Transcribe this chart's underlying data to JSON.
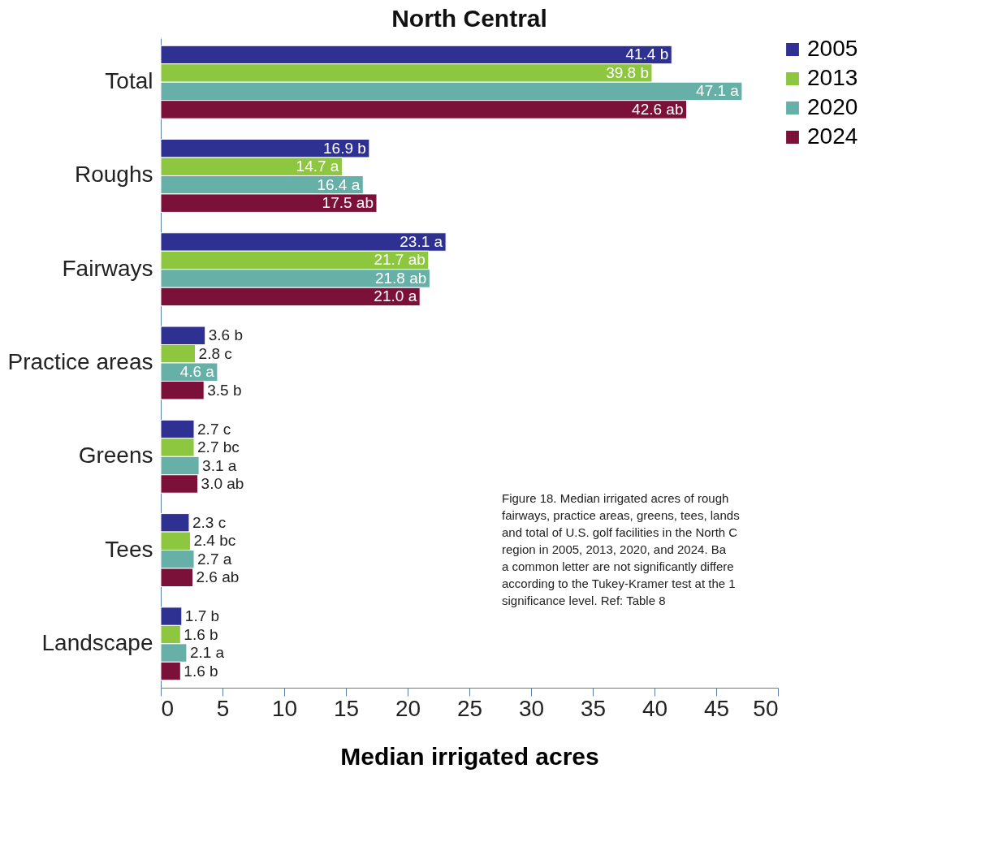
{
  "chart_data": {
    "type": "bar",
    "orientation": "horizontal",
    "title": "North Central",
    "xlabel": "Median irrigated acres",
    "categories": [
      "Total",
      "Roughs",
      "Fairways",
      "Practice areas",
      "Greens",
      "Tees",
      "Landscape"
    ],
    "series": [
      {
        "name": "2005",
        "color": "#2e3192",
        "values": [
          41.4,
          16.9,
          23.1,
          3.6,
          2.7,
          2.3,
          1.7
        ],
        "value_labels": [
          "41.4 b",
          "16.9 b",
          "23.1 a",
          "3.6 b",
          "2.7 c",
          "2.3 c",
          "1.7 b"
        ]
      },
      {
        "name": "2013",
        "color": "#8dc63f",
        "values": [
          39.8,
          14.7,
          21.7,
          2.8,
          2.7,
          2.4,
          1.6
        ],
        "value_labels": [
          "39.8 b",
          "14.7 a",
          "21.7 ab",
          "2.8 c",
          "2.7 bc",
          "2.4 bc",
          "1.6 b"
        ]
      },
      {
        "name": "2020",
        "color": "#66b0a8",
        "values": [
          47.1,
          16.4,
          21.8,
          4.6,
          3.1,
          2.7,
          2.1
        ],
        "value_labels": [
          "47.1 a",
          "16.4 a",
          "21.8 ab",
          "4.6 a",
          "3.1 a",
          "2.7 a",
          "2.1 a"
        ]
      },
      {
        "name": "2024",
        "color": "#7b1139",
        "values": [
          42.6,
          17.5,
          21.0,
          3.5,
          3.0,
          2.6,
          1.6
        ],
        "value_labels": [
          "42.6 ab",
          "17.5 ab",
          "21.0 a",
          "3.5 b",
          "3.0 ab",
          "2.6 ab",
          "1.6 b"
        ]
      }
    ],
    "xlim": [
      0,
      50
    ],
    "xticks": [
      0,
      5,
      10,
      15,
      20,
      25,
      30,
      35,
      40,
      45,
      50
    ],
    "grid": false,
    "legend": "top right",
    "annotations": [
      "Figure 18. Median irrigated acres of rough\nfairways, practice areas, greens, tees, lands\nand total of U.S. golf facilities in the North C\nregion in 2005, 2013, 2020, and 2024. Ba\na common letter are not significantly differe\naccording to the Tukey-Kramer test at the 1\nsignificance level. Ref: Table 8"
    ]
  }
}
